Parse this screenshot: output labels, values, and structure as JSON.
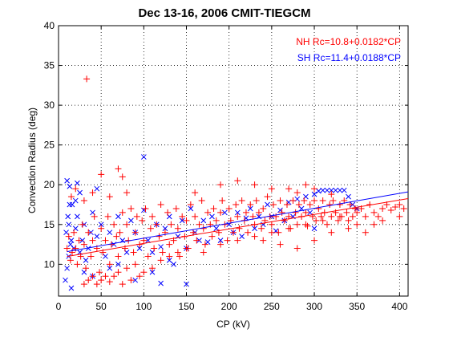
{
  "chart_data": {
    "type": "scatter",
    "title": "Dec 13-16, 2006 CMIT-TIEGCM",
    "xlabel": "CP (kV)",
    "ylabel": "Convection Radius (deg)",
    "xlim": [
      0,
      410
    ],
    "ylim": [
      6,
      40
    ],
    "xticks": [
      0,
      50,
      100,
      150,
      200,
      250,
      300,
      350,
      400
    ],
    "yticks": [
      10,
      15,
      20,
      25,
      30,
      35,
      40
    ],
    "grid": true,
    "legend_placement": "top-right",
    "series": [
      {
        "name": "SH",
        "marker": "x",
        "color": "#0000ff",
        "fit": {
          "label": "SH Rc=11.4+0.0188*CP",
          "intercept": 11.4,
          "slope": 0.0188
        },
        "points": [
          [
            8,
            8
          ],
          [
            10,
            9.5
          ],
          [
            12,
            11
          ],
          [
            14,
            12.5
          ],
          [
            9,
            14
          ],
          [
            11,
            16
          ],
          [
            13,
            17.5
          ],
          [
            15,
            13
          ],
          [
            18,
            12
          ],
          [
            20,
            14.5
          ],
          [
            22,
            16
          ],
          [
            25,
            11.5
          ],
          [
            28,
            13
          ],
          [
            30,
            15
          ],
          [
            32,
            10.5
          ],
          [
            35,
            12
          ],
          [
            38,
            14
          ],
          [
            40,
            16.5
          ],
          [
            45,
            13.5
          ],
          [
            50,
            15
          ],
          [
            55,
            11
          ],
          [
            60,
            14
          ],
          [
            65,
            12.5
          ],
          [
            70,
            16
          ],
          [
            75,
            13
          ],
          [
            80,
            11.5
          ],
          [
            85,
            15.5
          ],
          [
            90,
            14
          ],
          [
            95,
            12
          ],
          [
            100,
            16.8
          ],
          [
            105,
            13
          ],
          [
            110,
            9
          ],
          [
            115,
            15
          ],
          [
            120,
            12.2
          ],
          [
            125,
            14.5
          ],
          [
            130,
            16
          ],
          [
            135,
            10
          ],
          [
            140,
            13.5
          ],
          [
            145,
            15.5
          ],
          [
            150,
            12
          ],
          [
            155,
            17
          ],
          [
            160,
            14
          ],
          [
            165,
            13
          ],
          [
            170,
            15.5
          ],
          [
            175,
            12.8
          ],
          [
            180,
            16
          ],
          [
            185,
            14.5
          ],
          [
            190,
            13
          ],
          [
            195,
            16.5
          ],
          [
            200,
            15
          ],
          [
            205,
            14
          ],
          [
            210,
            16.5
          ],
          [
            215,
            13.5
          ],
          [
            220,
            15.8
          ],
          [
            225,
            17
          ],
          [
            230,
            14.5
          ],
          [
            235,
            16
          ],
          [
            240,
            15
          ],
          [
            245,
            17.5
          ],
          [
            250,
            16
          ],
          [
            255,
            14.2
          ],
          [
            260,
            16.8
          ],
          [
            265,
            15.5
          ],
          [
            270,
            17.8
          ],
          [
            275,
            16
          ],
          [
            280,
            18.2
          ],
          [
            285,
            17
          ],
          [
            290,
            18.5
          ],
          [
            295,
            16.5
          ],
          [
            300,
            18.8
          ],
          [
            305,
            19.2
          ],
          [
            310,
            19.3
          ],
          [
            315,
            19.3
          ],
          [
            320,
            19.3
          ],
          [
            325,
            19.3
          ],
          [
            330,
            19.3
          ],
          [
            335,
            19.3
          ],
          [
            340,
            18.5
          ],
          [
            345,
            17.5
          ],
          [
            350,
            17
          ],
          [
            10,
            20.5
          ],
          [
            13,
            19.8
          ],
          [
            22,
            20.2
          ],
          [
            45,
            19.5
          ],
          [
            100,
            23.5
          ],
          [
            150,
            7.5
          ],
          [
            120,
            7.6
          ],
          [
            90,
            8
          ],
          [
            40,
            8.5
          ],
          [
            60,
            9.5
          ],
          [
            130,
            10.5
          ],
          [
            110,
            11.5
          ],
          [
            70,
            10
          ],
          [
            30,
            9
          ],
          [
            15,
            7
          ],
          [
            20,
            18
          ],
          [
            25,
            19
          ],
          [
            16,
            17.5
          ],
          [
            12,
            15
          ],
          [
            300,
            14.5
          ]
        ]
      },
      {
        "name": "NH",
        "marker": "+",
        "color": "#ff0000",
        "fit": {
          "label": "NH Rc=10.8+0.0182*CP",
          "intercept": 10.8,
          "slope": 0.0182
        },
        "points": [
          [
            33,
            33.3
          ],
          [
            70,
            22
          ],
          [
            50,
            21.3
          ],
          [
            75,
            21
          ],
          [
            20,
            19.5
          ],
          [
            15,
            18.5
          ],
          [
            30,
            18
          ],
          [
            40,
            19
          ],
          [
            60,
            18.5
          ],
          [
            80,
            19
          ],
          [
            10,
            12
          ],
          [
            12,
            13.5
          ],
          [
            14,
            10.5
          ],
          [
            16,
            11.5
          ],
          [
            18,
            14
          ],
          [
            20,
            12
          ],
          [
            22,
            10
          ],
          [
            24,
            13
          ],
          [
            26,
            11
          ],
          [
            28,
            15
          ],
          [
            30,
            12.5
          ],
          [
            32,
            9.5
          ],
          [
            35,
            14
          ],
          [
            38,
            11
          ],
          [
            40,
            13
          ],
          [
            42,
            16
          ],
          [
            45,
            12
          ],
          [
            48,
            9
          ],
          [
            50,
            14.5
          ],
          [
            52,
            11.5
          ],
          [
            55,
            13
          ],
          [
            58,
            16
          ],
          [
            60,
            10
          ],
          [
            62,
            12.5
          ],
          [
            65,
            15
          ],
          [
            68,
            13.5
          ],
          [
            70,
            11
          ],
          [
            72,
            14
          ],
          [
            75,
            16.5
          ],
          [
            78,
            12
          ],
          [
            80,
            15
          ],
          [
            82,
            13
          ],
          [
            85,
            17
          ],
          [
            88,
            11.5
          ],
          [
            90,
            14
          ],
          [
            92,
            16
          ],
          [
            95,
            12.5
          ],
          [
            98,
            15.5
          ],
          [
            100,
            13
          ],
          [
            102,
            17
          ],
          [
            105,
            11
          ],
          [
            108,
            14.5
          ],
          [
            110,
            16
          ],
          [
            112,
            12
          ],
          [
            115,
            15
          ],
          [
            118,
            13.5
          ],
          [
            120,
            17.5
          ],
          [
            122,
            11.5
          ],
          [
            125,
            14
          ],
          [
            128,
            16.5
          ],
          [
            130,
            12.5
          ],
          [
            132,
            15
          ],
          [
            135,
            13
          ],
          [
            138,
            17
          ],
          [
            140,
            14.5
          ],
          [
            142,
            11
          ],
          [
            145,
            16
          ],
          [
            148,
            13.5
          ],
          [
            150,
            15.5
          ],
          [
            152,
            12
          ],
          [
            155,
            17.5
          ],
          [
            158,
            14
          ],
          [
            160,
            16
          ],
          [
            162,
            13
          ],
          [
            165,
            15
          ],
          [
            168,
            18
          ],
          [
            170,
            14.5
          ],
          [
            172,
            12.5
          ],
          [
            175,
            16.5
          ],
          [
            178,
            15
          ],
          [
            180,
            13.5
          ],
          [
            182,
            17
          ],
          [
            185,
            15.5
          ],
          [
            188,
            14
          ],
          [
            190,
            16.5
          ],
          [
            192,
            18
          ],
          [
            195,
            15
          ],
          [
            198,
            13
          ],
          [
            200,
            17
          ],
          [
            202,
            15.5
          ],
          [
            205,
            14
          ],
          [
            208,
            17.5
          ],
          [
            210,
            16
          ],
          [
            212,
            14.5
          ],
          [
            215,
            18
          ],
          [
            218,
            15.5
          ],
          [
            220,
            16.5
          ],
          [
            222,
            14
          ],
          [
            225,
            17.5
          ],
          [
            228,
            16
          ],
          [
            230,
            15
          ],
          [
            232,
            18
          ],
          [
            235,
            16.5
          ],
          [
            238,
            14.5
          ],
          [
            240,
            17
          ],
          [
            242,
            15.5
          ],
          [
            245,
            18.5
          ],
          [
            248,
            16
          ],
          [
            250,
            15
          ],
          [
            252,
            17.5
          ],
          [
            255,
            16
          ],
          [
            258,
            14
          ],
          [
            260,
            18
          ],
          [
            262,
            16.5
          ],
          [
            265,
            15.5
          ],
          [
            268,
            17.5
          ],
          [
            270,
            16
          ],
          [
            272,
            14.5
          ],
          [
            275,
            18
          ],
          [
            278,
            16.5
          ],
          [
            280,
            15
          ],
          [
            282,
            17.5
          ],
          [
            285,
            16
          ],
          [
            288,
            18
          ],
          [
            290,
            16.5
          ],
          [
            292,
            14.8
          ],
          [
            295,
            17.5
          ],
          [
            298,
            16
          ],
          [
            300,
            18
          ],
          [
            302,
            15.5
          ],
          [
            305,
            17
          ],
          [
            308,
            16
          ],
          [
            310,
            18
          ],
          [
            312,
            16.5
          ],
          [
            315,
            15
          ],
          [
            318,
            17.5
          ],
          [
            320,
            16
          ],
          [
            322,
            18
          ],
          [
            325,
            16.5
          ],
          [
            328,
            15.5
          ],
          [
            330,
            17.5
          ],
          [
            332,
            16
          ],
          [
            335,
            18
          ],
          [
            338,
            16.5
          ],
          [
            340,
            15.5
          ],
          [
            342,
            17.5
          ],
          [
            345,
            16
          ],
          [
            348,
            17
          ],
          [
            350,
            16.5
          ],
          [
            355,
            17
          ],
          [
            360,
            16
          ],
          [
            365,
            17.5
          ],
          [
            370,
            16.5
          ],
          [
            375,
            16
          ],
          [
            380,
            17
          ],
          [
            385,
            17.5
          ],
          [
            390,
            16.8
          ],
          [
            395,
            17.2
          ],
          [
            400,
            17.5
          ],
          [
            405,
            17
          ],
          [
            30,
            7.5
          ],
          [
            35,
            8
          ],
          [
            40,
            8.5
          ],
          [
            45,
            7.5
          ],
          [
            50,
            8
          ],
          [
            55,
            8.5
          ],
          [
            60,
            7.8
          ],
          [
            65,
            8.5
          ],
          [
            70,
            9
          ],
          [
            75,
            7.5
          ],
          [
            80,
            9.5
          ],
          [
            85,
            8
          ],
          [
            90,
            10
          ],
          [
            95,
            8.5
          ],
          [
            100,
            9
          ],
          [
            110,
            9.5
          ],
          [
            120,
            10.5
          ],
          [
            130,
            11
          ],
          [
            140,
            11.5
          ],
          [
            150,
            12
          ],
          [
            170,
            11.5
          ],
          [
            190,
            12.5
          ],
          [
            210,
            13
          ],
          [
            230,
            13.5
          ],
          [
            250,
            14
          ],
          [
            270,
            14.5
          ],
          [
            290,
            15
          ],
          [
            310,
            15.5
          ],
          [
            330,
            16
          ],
          [
            350,
            15
          ],
          [
            160,
            19
          ],
          [
            190,
            20
          ],
          [
            210,
            20.5
          ],
          [
            230,
            20
          ],
          [
            250,
            19.5
          ],
          [
            270,
            19.5
          ],
          [
            290,
            20
          ],
          [
            300,
            19.5
          ],
          [
            240,
            13
          ],
          [
            260,
            12.5
          ],
          [
            280,
            12
          ],
          [
            300,
            13
          ],
          [
            320,
            14
          ],
          [
            340,
            14.5
          ],
          [
            360,
            14
          ],
          [
            370,
            15
          ],
          [
            380,
            15.5
          ],
          [
            400,
            16
          ],
          [
            280,
            19
          ],
          [
            320,
            18.8
          ]
        ]
      }
    ]
  }
}
